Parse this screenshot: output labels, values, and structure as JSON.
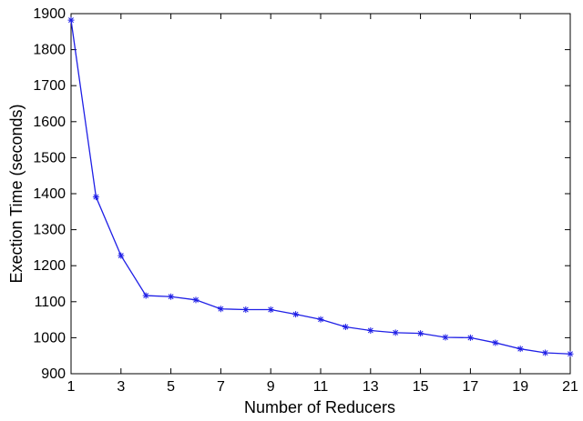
{
  "chart_data": {
    "type": "line",
    "title": "",
    "xlabel": "Number of Reducers",
    "ylabel": "Exection Time (seconds)",
    "xlim": [
      1,
      21
    ],
    "ylim": [
      900,
      1900
    ],
    "xticks": [
      1,
      3,
      5,
      7,
      9,
      11,
      13,
      15,
      17,
      19,
      21
    ],
    "yticks": [
      900,
      1000,
      1100,
      1200,
      1300,
      1400,
      1500,
      1600,
      1700,
      1800,
      1900
    ],
    "xtick_labels": [
      "1",
      "3",
      "5",
      "7",
      "9",
      "11",
      "13",
      "15",
      "17",
      "19",
      "21"
    ],
    "ytick_labels": [
      "900",
      "1000",
      "1100",
      "1200",
      "1300",
      "1400",
      "1500",
      "1600",
      "1700",
      "1800",
      "1900"
    ],
    "grid": false,
    "legend": "none",
    "marker": "asterisk",
    "series_color": "#1f1fe6",
    "series": [
      {
        "x": [
          1,
          2,
          3,
          4,
          5,
          6,
          7,
          8,
          9,
          10,
          11,
          12,
          13,
          14,
          15,
          16,
          17,
          18,
          19,
          20,
          21
        ],
        "values": [
          1882,
          1391,
          1228,
          1117,
          1114,
          1105,
          1080,
          1078,
          1078,
          1065,
          1051,
          1030,
          1020,
          1014,
          1012,
          1001,
          1000,
          986,
          969,
          958,
          955
        ]
      }
    ]
  }
}
